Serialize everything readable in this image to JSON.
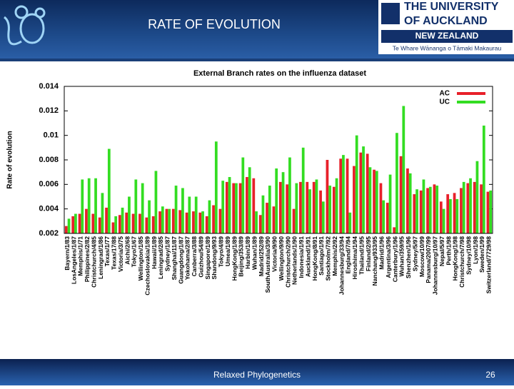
{
  "header": {
    "title": "RATE OF EVOLUTION",
    "logo_line1": "THE UNIVERSITY",
    "logo_line2": "OF AUCKLAND",
    "logo_line3": "NEW ZEALAND",
    "logo_line4": "Te Whare Wānanga o Tāmaki Makaurau"
  },
  "footer": {
    "text": "Relaxed Phylogenetics",
    "page": "26"
  },
  "chart_data": {
    "type": "bar",
    "title": "External Branch rates on the influenza dataset",
    "y_label": "Rate of evolution",
    "categories": [
      "Bayern/1/83",
      "LosAngeles/1/87",
      "Memphis/1/71",
      "Philippines/2/82",
      "Christchurch/4/85",
      "Leningrad/1/86",
      "Texas/1/77",
      "Texas/17/88",
      "Victoria/3/75",
      "Aichi/2/68",
      "Tokyo/1/67",
      "Wellington/1/85",
      "Czechoslovakia/1/89",
      "Hawaii/1/89",
      "Leningrad/2/85",
      "Sydney/1/87",
      "Shanghai/11/87",
      "Guangdong/1/87",
      "Yokohama/2/87",
      "Canberra/3/88",
      "Guizhou/54/89",
      "Singapore/1/89",
      "Shandong/9/93",
      "Tokyo/4/89",
      "Umea/1/89",
      "HongKong/1/89",
      "Beijing/353/89",
      "Harbin/1/89",
      "Wuhan/1/89",
      "Madrid/252/89",
      "SouthAustralia/3/90",
      "Victoria/9/90",
      "Wellington/9/90",
      "Christchurch/2/90",
      "Netherlands/1/90",
      "Indonesia/1/91",
      "Auckland/1/91",
      "HongKong/8/91",
      "Santiago/1/91",
      "Stockholm/7/92",
      "Memphis/2/92",
      "Johannesburg/33/94",
      "England/7/94",
      "Hiroshima/1/94",
      "Thailand/1/95",
      "Finland/2/95",
      "Nanchang/933/95",
      "Madrid/1/96",
      "Argentina/3/96",
      "Canterbury/1/96",
      "Wuhan/359/95",
      "Shenzhen/1/96",
      "Sydney/5/97",
      "Moscow/10/99",
      "Panama/2007/99",
      "Johannesburg/10/97",
      "Nepal/5/97",
      "Perth/1/98",
      "HongKong/1/98",
      "Christchurch/7/98",
      "Sydney/10/98",
      "Lyon/1/98",
      "Sweden/1/99",
      "Switzerland/7729/98"
    ],
    "series": [
      {
        "name": "AC",
        "color": "#e8202a",
        "values": [
          0.0026,
          0.0034,
          0.0036,
          0.004,
          0.0036,
          0.0033,
          0.0041,
          0.0029,
          0.0035,
          0.0037,
          0.0036,
          0.0036,
          0.0033,
          0.0034,
          0.0038,
          0.004,
          0.004,
          0.0039,
          0.0037,
          0.0038,
          0.0037,
          0.0034,
          0.0043,
          0.004,
          0.0062,
          0.0061,
          0.0061,
          0.0066,
          0.0065,
          0.0035,
          0.0045,
          0.0042,
          0.0062,
          0.006,
          0.004,
          0.0062,
          0.0062,
          0.0062,
          0.0055,
          0.008,
          0.0058,
          0.0081,
          0.0081,
          0.0075,
          0.0086,
          0.0085,
          0.0072,
          0.0061,
          0.0045,
          0.0025,
          0.0083,
          0.0073,
          0.0052,
          0.0055,
          0.0057,
          0.006,
          0.0046,
          0.0052,
          0.0053,
          0.0057,
          0.0061,
          0.0062,
          0.006,
          0.0054
        ]
      },
      {
        "name": "UC",
        "color": "#33dd22",
        "values": [
          0.0032,
          0.0036,
          0.0064,
          0.0065,
          0.0065,
          0.0053,
          0.0089,
          0.0034,
          0.0041,
          0.005,
          0.0064,
          0.0061,
          0.0047,
          0.0071,
          0.0042,
          0.004,
          0.0059,
          0.0057,
          0.005,
          0.005,
          0.0038,
          0.0047,
          0.0095,
          0.0063,
          0.0066,
          0.0061,
          0.0082,
          0.0074,
          0.0038,
          0.0051,
          0.0059,
          0.0073,
          0.007,
          0.0082,
          0.0061,
          0.009,
          0.0056,
          0.0064,
          0.0046,
          0.0059,
          0.0065,
          0.0084,
          0.0037,
          0.01,
          0.0091,
          0.0074,
          0.0071,
          0.0047,
          0.0068,
          0.0102,
          0.0124,
          0.0069,
          0.0056,
          0.0064,
          0.0058,
          0.0059,
          0.004,
          0.0048,
          0.0048,
          0.0062,
          0.0065,
          0.0079,
          0.0108,
          0.0055
        ]
      }
    ],
    "ylim": [
      0.002,
      0.014
    ],
    "yticks": [
      0.002,
      0.004,
      0.006,
      0.008,
      0.01,
      0.012,
      0.014
    ],
    "legend": "top-right"
  }
}
